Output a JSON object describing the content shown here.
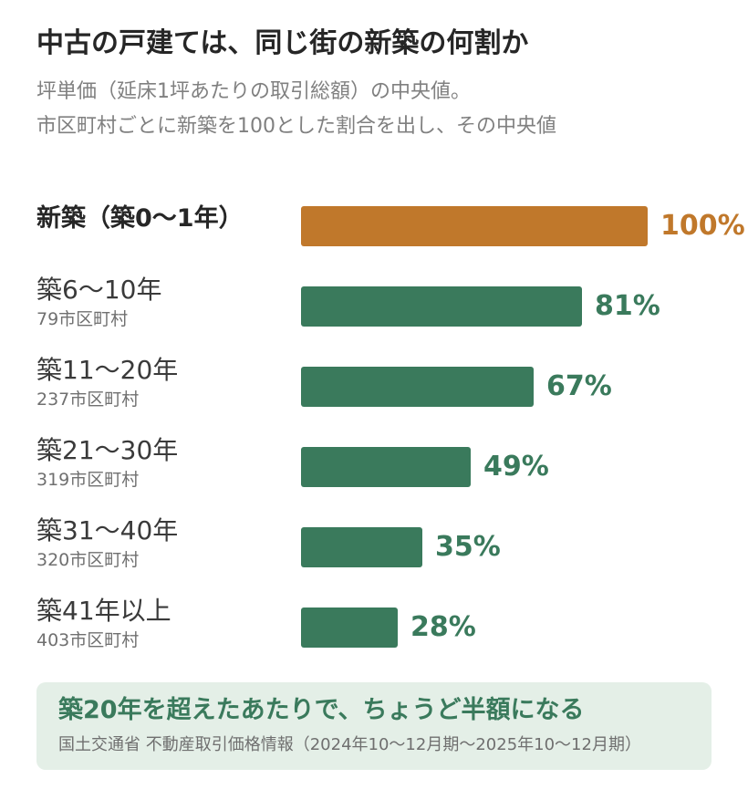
{
  "title": "中古の戸建ては、同じ街の新築の何割か",
  "subtitle": {
    "line1": "坪単価（延床1坪あたりの取引総額）の中央値。",
    "line2": "市区町村ごとに新築を100とした割合を出し、その中央値"
  },
  "colors": {
    "highlight": "#c0782b",
    "series": "#3a7a5c"
  },
  "chart_data": {
    "type": "bar",
    "orientation": "horizontal",
    "xlim": [
      0,
      100
    ],
    "unit": "%",
    "categories": [
      "新築（築0〜1年）",
      "築6〜10年",
      "築11〜20年",
      "築21〜30年",
      "築31〜40年",
      "築41年以上"
    ],
    "counts": [
      "",
      "79市区町村",
      "237市区町村",
      "319市区町村",
      "320市区町村",
      "403市区町村"
    ],
    "values": [
      100,
      81,
      67,
      49,
      35,
      28
    ],
    "value_labels": [
      "100%",
      "81%",
      "67%",
      "49%",
      "35%",
      "28%"
    ],
    "highlight_index": 0
  },
  "callout": {
    "headline": "築20年を超えたあたりで、ちょうど半額になる",
    "source": "国土交通省 不動産取引価格情報（2024年10〜12月期〜2025年10〜12月期）"
  }
}
